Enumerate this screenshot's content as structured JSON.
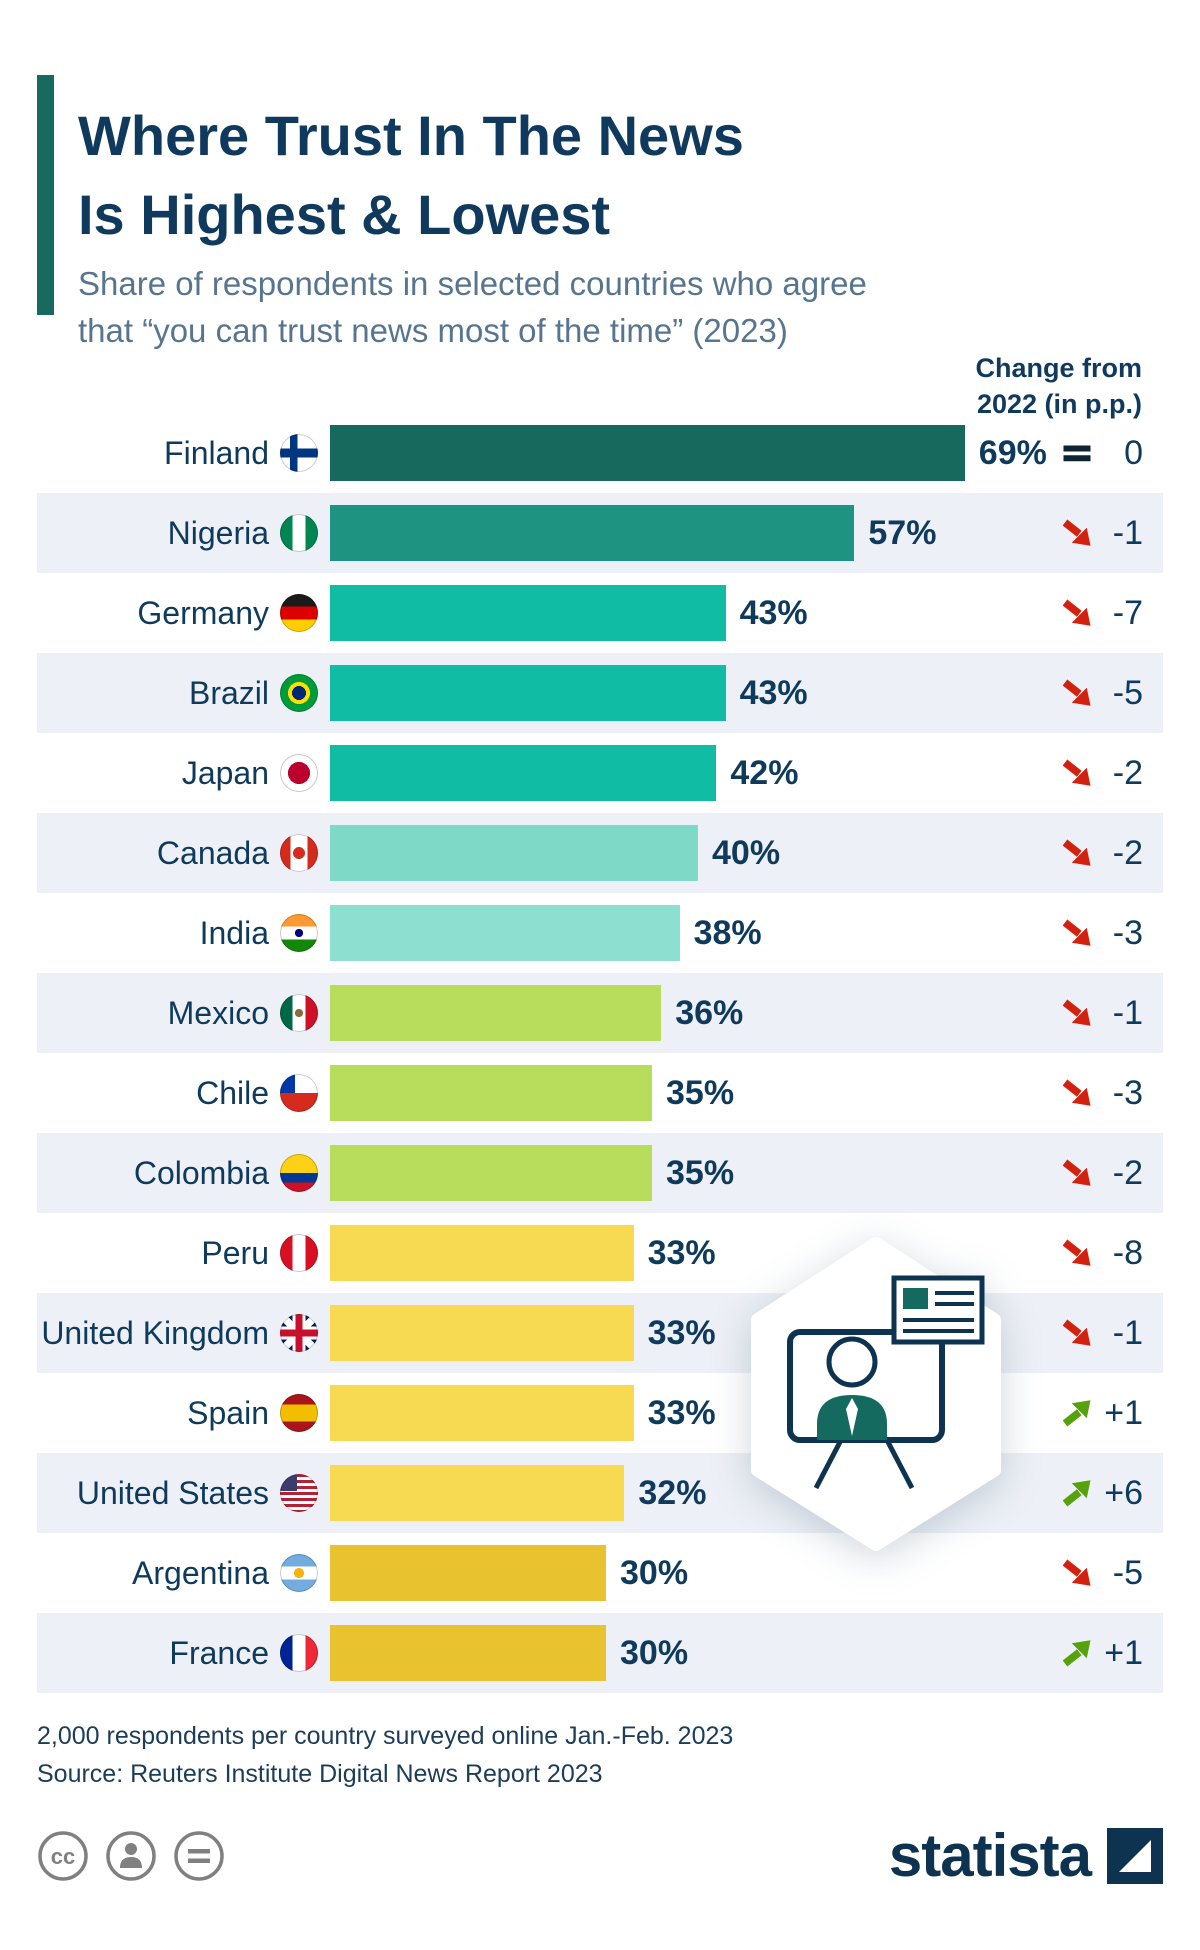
{
  "header": {
    "title_line1": "Where Trust In The News",
    "title_line2": "Is Highest & Lowest",
    "subtitle_line1": "Share of respondents in selected countries who agree",
    "subtitle_line2": "that “you can trust news most of the time” (2023)",
    "change_header_line1": "Change from",
    "change_header_line2": "2022 (in p.p.)"
  },
  "chart_data": {
    "type": "bar",
    "orientation": "horizontal",
    "title": "Where Trust In The News Is Highest & Lowest",
    "subtitle": "Share of respondents in selected countries who agree that “you can trust news most of the time” (2023)",
    "value_suffix": "%",
    "xlim": [
      0,
      75
    ],
    "grid": false,
    "legend": false,
    "colors": {
      "decline_arrow": "#d2210f",
      "increase_arrow": "#55a20c",
      "no_change_icon": "#0e2433",
      "alt_row_bg": "#edf0f6",
      "accent_bar": "#186a5f",
      "text_navy": "#0f3a5c"
    },
    "rows": [
      {
        "country": "Finland",
        "value": 69,
        "value_label": "69%",
        "change": "0",
        "change_dir": "flat",
        "bar_color": "#17695e",
        "flag": "finland"
      },
      {
        "country": "Nigeria",
        "value": 57,
        "value_label": "57%",
        "change": "-1",
        "change_dir": "down",
        "bar_color": "#1e9382",
        "flag": "nigeria"
      },
      {
        "country": "Germany",
        "value": 43,
        "value_label": "43%",
        "change": "-7",
        "change_dir": "down",
        "bar_color": "#10bda4",
        "flag": "germany"
      },
      {
        "country": "Brazil",
        "value": 43,
        "value_label": "43%",
        "change": "-5",
        "change_dir": "down",
        "bar_color": "#10bda4",
        "flag": "brazil"
      },
      {
        "country": "Japan",
        "value": 42,
        "value_label": "42%",
        "change": "-2",
        "change_dir": "down",
        "bar_color": "#10bda4",
        "flag": "japan"
      },
      {
        "country": "Canada",
        "value": 40,
        "value_label": "40%",
        "change": "-2",
        "change_dir": "down",
        "bar_color": "#7ed9c6",
        "flag": "canada"
      },
      {
        "country": "India",
        "value": 38,
        "value_label": "38%",
        "change": "-3",
        "change_dir": "down",
        "bar_color": "#8ddfd0",
        "flag": "india"
      },
      {
        "country": "Mexico",
        "value": 36,
        "value_label": "36%",
        "change": "-1",
        "change_dir": "down",
        "bar_color": "#b8dd5c",
        "flag": "mexico"
      },
      {
        "country": "Chile",
        "value": 35,
        "value_label": "35%",
        "change": "-3",
        "change_dir": "down",
        "bar_color": "#b8dd5c",
        "flag": "chile"
      },
      {
        "country": "Colombia",
        "value": 35,
        "value_label": "35%",
        "change": "-2",
        "change_dir": "down",
        "bar_color": "#b8dd5c",
        "flag": "colombia"
      },
      {
        "country": "Peru",
        "value": 33,
        "value_label": "33%",
        "change": "-8",
        "change_dir": "down",
        "bar_color": "#f8da52",
        "flag": "peru"
      },
      {
        "country": "United Kingdom",
        "value": 33,
        "value_label": "33%",
        "change": "-1",
        "change_dir": "down",
        "bar_color": "#f8da52",
        "flag": "uk"
      },
      {
        "country": "Spain",
        "value": 33,
        "value_label": "33%",
        "change": "+1",
        "change_dir": "up",
        "bar_color": "#f8da52",
        "flag": "spain"
      },
      {
        "country": "United States",
        "value": 32,
        "value_label": "32%",
        "change": "+6",
        "change_dir": "up",
        "bar_color": "#f8da52",
        "flag": "us"
      },
      {
        "country": "Argentina",
        "value": 30,
        "value_label": "30%",
        "change": "-5",
        "change_dir": "down",
        "bar_color": "#e8c32f",
        "flag": "argentina"
      },
      {
        "country": "France",
        "value": 30,
        "value_label": "30%",
        "change": "+1",
        "change_dir": "up",
        "bar_color": "#e8c32f",
        "flag": "france"
      }
    ]
  },
  "footer": {
    "note": "2,000 respondents per country surveyed online Jan.-Feb. 2023",
    "source": "Source: Reuters Institute Digital News Report 2023",
    "brand": "statista"
  }
}
